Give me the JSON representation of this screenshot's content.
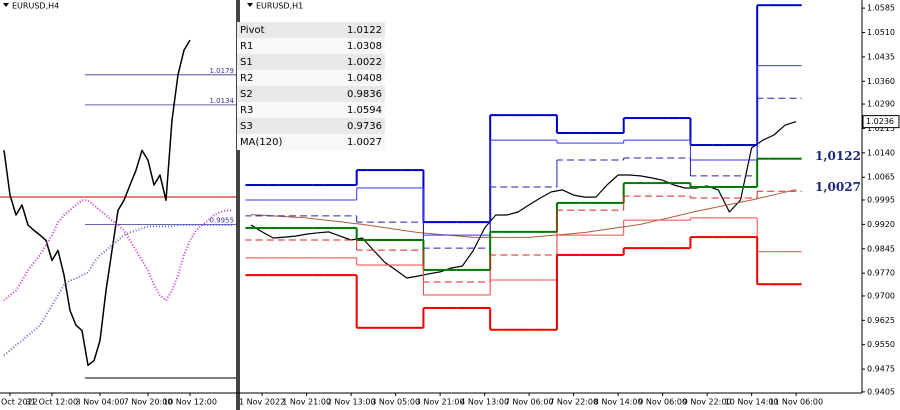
{
  "chart_data": [
    {
      "type": "line",
      "title": "EURUSD,H4",
      "categories": [
        null,
        "Oct 2022",
        null,
        null,
        null,
        null,
        null,
        null,
        "31 Oct 12:00",
        null,
        null,
        null,
        null,
        null,
        null,
        null,
        "3 Nov 04:00",
        null,
        null,
        null,
        null,
        null,
        null,
        null,
        "7 Nov 20:00",
        null,
        null,
        null,
        null,
        null,
        null,
        "10 Nov 12:00",
        null,
        null,
        null,
        null,
        null,
        null,
        null
      ],
      "ylim": [
        0.9692,
        1.0291
      ],
      "series": [
        {
          "color": "#000000",
          "width": 1.5,
          "values": [
            1.0066,
            0.9999,
            0.9969,
            0.9984,
            0.9954,
            0.9946,
            0.9939,
            0.9931,
            0.9901,
            0.9916,
            0.9879,
            0.9826,
            0.9804,
            0.9796,
            0.9744,
            0.9751,
            0.9781,
            0.9856,
            0.9916,
            0.9976,
            0.9991,
            1.0014,
            1.0036,
            1.0066,
            1.0051,
            1.0014,
            1.0029,
            0.9991,
            1.0111,
            1.0179,
            1.0216,
            1.0231,
            null,
            null,
            null,
            null,
            null,
            null,
            null
          ]
        },
        {
          "color": "#cc33cc",
          "width": 2,
          "dash": "1 2",
          "values": [
            0.9841,
            0.9849,
            0.9856,
            0.9871,
            0.9886,
            0.9898,
            0.9909,
            0.9924,
            0.9939,
            0.9958,
            0.9969,
            0.9976,
            0.9984,
            0.9991,
            0.9991,
            0.9984,
            0.9976,
            0.9969,
            0.9961,
            0.9954,
            0.9946,
            0.9931,
            0.9916,
            0.9901,
            0.9886,
            0.9864,
            0.9849,
            0.9841,
            0.9856,
            0.9879,
            0.9909,
            0.9931,
            0.9946,
            0.9954,
            0.9961,
            0.9969,
            0.9973,
            0.9976,
            0.9976
          ]
        },
        {
          "color": "#6666dd",
          "width": 2,
          "dash": "1 2",
          "values": [
            0.9759,
            0.9766,
            0.9774,
            0.9781,
            0.9789,
            0.9796,
            0.9804,
            0.9819,
            0.9834,
            0.9849,
            0.9864,
            0.9871,
            0.9874,
            0.9879,
            0.9883,
            0.9898,
            0.9909,
            0.9916,
            0.9924,
            0.9931,
            0.9939,
            0.9943,
            0.9946,
            0.9949,
            0.9952,
            0.9952,
            0.9952,
            0.9952,
            0.9952,
            0.9954,
            0.9954,
            0.9954,
            0.9954,
            0.9954,
            0.9954,
            0.9954,
            0.9954,
            0.9954,
            0.9954
          ]
        }
      ],
      "levels": [
        1.0179,
        1.0134,
        0.9955
      ],
      "lines": [
        {
          "value": 0.9996,
          "color": "#cc0000"
        },
        {
          "value": 0.9725,
          "color": "#000000"
        }
      ]
    },
    {
      "type": "line",
      "title": "EURUSD,H1",
      "categories": [
        null,
        "1 Nov 2022",
        null,
        null,
        null,
        "1 Nov 21:00",
        null,
        null,
        null,
        "2 Nov 13:00",
        null,
        null,
        null,
        "3 Nov 05:00",
        null,
        null,
        null,
        "3 Nov 21:00",
        null,
        null,
        null,
        "4 Nov 13:00",
        null,
        null,
        null,
        "7 Nov 06:00",
        null,
        null,
        null,
        "7 Nov 22:00",
        null,
        null,
        null,
        "8 Nov 14:00",
        null,
        null,
        null,
        "9 Nov 06:00",
        null,
        null,
        null,
        "9 Nov 22:00",
        null,
        null,
        null,
        "10 Nov 14:00",
        null,
        null,
        null,
        "11 Nov 06:00"
      ],
      "ylim": [
        0.938,
        1.061
      ],
      "yticks": [
        1.0585,
        {
          "value": 1.051,
          "label": "1.0510"
        },
        1.0435,
        {
          "value": 1.036,
          "label": "1.0360"
        },
        {
          "value": 1.029,
          "label": "1.0290"
        },
        1.0215,
        {
          "value": 1.014,
          "label": "1.0140"
        },
        1.0065,
        0.9995,
        {
          "value": 0.992,
          "label": "0.9920"
        },
        0.9845,
        {
          "value": 0.977,
          "label": "0.9770"
        },
        {
          "value": 0.97,
          "label": "0.9700"
        },
        0.9625,
        {
          "value": 0.955,
          "label": "0.9550"
        },
        0.9475,
        0.9405
      ],
      "last_price": 1.0236,
      "annotations": [
        "1,0122",
        "1,0027"
      ],
      "series": [
        {
          "color": "#000000",
          "width": 1.2,
          "values": [
            0.9918,
            0.9897,
            0.9878,
            0.9881,
            0.9884,
            0.989,
            0.9894,
            0.9897,
            0.9884,
            0.9872,
            0.9878,
            0.9841,
            0.9804,
            0.978,
            0.9755,
            0.9761,
            0.9768,
            0.9774,
            0.9786,
            0.9792,
            0.9841,
            0.9909,
            0.9949,
            0.9949,
            0.9958,
            0.998,
            1.0001,
            1.002,
            1.0026,
            1.001,
            1.0004,
            1.0004,
            1.0041,
            1.0072,
            1.0072,
            1.0069,
            1.0063,
            1.0056,
            1.0041,
            1.0032,
            1.0032,
            1.0038,
            1.0026,
            0.9958,
            0.9995,
            1.0155,
            1.0179,
            1.0195,
            1.0225,
            1.0236
          ]
        },
        {
          "color": "#b05a3a",
          "width": 1,
          "values": [
            0.995,
            0.9948,
            0.9946,
            0.9944,
            0.9942,
            0.994,
            0.9936,
            0.9932,
            0.9928,
            0.9924,
            0.992,
            0.9915,
            0.991,
            0.9905,
            0.99,
            0.9895,
            0.9892,
            0.9889,
            0.9886,
            0.9883,
            0.988,
            0.988,
            0.988,
            0.988,
            0.988,
            0.988,
            0.9883,
            0.9886,
            0.9889,
            0.9892,
            0.9895,
            0.99,
            0.9905,
            0.991,
            0.9915,
            0.992,
            0.9928,
            0.9936,
            0.9944,
            0.9952,
            0.996,
            0.9967,
            0.9974,
            0.9981,
            0.9988,
            0.9995,
            1.0003,
            1.0011,
            1.0019,
            1.0027
          ]
        },
        {
          "color": "#0000cc",
          "width": 2,
          "step": true,
          "values": [
            1.0041,
            1.0041,
            1.0041,
            1.0041,
            1.0041,
            1.0041,
            1.0041,
            1.0041,
            1.0041,
            1.0041,
            1.0087,
            1.0087,
            1.0087,
            1.0087,
            1.0087,
            1.0087,
            0.9927,
            0.9927,
            0.9927,
            0.9927,
            0.9927,
            0.9927,
            1.0256,
            1.0256,
            1.0256,
            1.0256,
            1.0256,
            1.0256,
            1.0201,
            1.0201,
            1.0201,
            1.0201,
            1.0201,
            1.0201,
            1.0247,
            1.0247,
            1.0247,
            1.0247,
            1.0247,
            1.0247,
            1.0164,
            1.0164,
            1.0164,
            1.0164,
            1.0164,
            1.0164,
            1.0594,
            1.0594,
            1.0594,
            1.0594
          ]
        },
        {
          "color": "#3333ff",
          "width": 1,
          "step": true,
          "values": [
            0.9995,
            0.9995,
            0.9995,
            0.9995,
            0.9995,
            0.9995,
            0.9995,
            0.9995,
            0.9995,
            0.9995,
            1.0032,
            1.0032,
            1.0032,
            1.0032,
            1.0032,
            1.0032,
            0.9887,
            0.9887,
            0.9887,
            0.9887,
            0.9887,
            0.9887,
            1.0179,
            1.0179,
            1.0179,
            1.0179,
            1.0179,
            1.0179,
            1.017,
            1.017,
            1.017,
            1.017,
            1.017,
            1.017,
            1.0179,
            1.0179,
            1.0179,
            1.0179,
            1.0179,
            1.0179,
            1.0118,
            1.0118,
            1.0118,
            1.0118,
            1.0118,
            1.0118,
            1.0408,
            1.0408,
            1.0408,
            1.0408
          ]
        },
        {
          "color": "#2222aa",
          "width": 1,
          "dash": "6 4",
          "step": true,
          "values": [
            0.9946,
            0.9946,
            0.9946,
            0.9946,
            0.9946,
            0.9946,
            0.9946,
            0.9946,
            0.9946,
            0.9946,
            0.9927,
            0.9927,
            0.9927,
            0.9927,
            0.9927,
            0.9927,
            0.9847,
            0.9847,
            0.9847,
            0.9847,
            0.9847,
            0.9847,
            1.0035,
            1.0035,
            1.0035,
            1.0035,
            1.0035,
            1.0035,
            1.0118,
            1.0118,
            1.0118,
            1.0118,
            1.0118,
            1.0118,
            1.0124,
            1.0124,
            1.0124,
            1.0124,
            1.0124,
            1.0124,
            1.0069,
            1.0069,
            1.0069,
            1.0069,
            1.0069,
            1.0069,
            1.0308,
            1.0308,
            1.0308,
            1.0308
          ]
        },
        {
          "color": "#007700",
          "width": 2,
          "step": true,
          "values": [
            0.9909,
            0.9909,
            0.9909,
            0.9909,
            0.9909,
            0.9909,
            0.9909,
            0.9909,
            0.9909,
            0.9909,
            0.9872,
            0.9872,
            0.9872,
            0.9872,
            0.9872,
            0.9872,
            0.978,
            0.978,
            0.978,
            0.978,
            0.978,
            0.978,
            0.9897,
            0.9897,
            0.9897,
            0.9897,
            0.9897,
            0.9897,
            0.9986,
            0.9986,
            0.9986,
            0.9986,
            0.9986,
            0.9986,
            1.0047,
            1.0047,
            1.0047,
            1.0047,
            1.0047,
            1.0047,
            1.0035,
            1.0035,
            1.0035,
            1.0035,
            1.0035,
            1.0035,
            1.0122,
            1.0122,
            1.0122,
            1.0122
          ]
        },
        {
          "color": "#dd2222",
          "width": 1,
          "dash": "6 4",
          "step": true,
          "values": [
            0.9872,
            0.9872,
            0.9872,
            0.9872,
            0.9872,
            0.9872,
            0.9872,
            0.9872,
            0.9872,
            0.9872,
            0.9841,
            0.9841,
            0.9841,
            0.9841,
            0.9841,
            0.9841,
            0.9743,
            0.9743,
            0.9743,
            0.9743,
            0.9743,
            0.9743,
            0.9826,
            0.9826,
            0.9826,
            0.9826,
            0.9826,
            0.9826,
            0.9964,
            0.9964,
            0.9964,
            0.9964,
            0.9964,
            0.9964,
            1.0007,
            1.0007,
            1.0007,
            1.0007,
            1.0007,
            1.0007,
            1.0001,
            1.0001,
            1.0001,
            1.0001,
            1.0001,
            1.0001,
            1.0022,
            1.0022,
            1.0022,
            1.0022
          ]
        },
        {
          "color": "#ff4444",
          "width": 1,
          "step": true,
          "values": [
            0.9817,
            0.9817,
            0.9817,
            0.9817,
            0.9817,
            0.9817,
            0.9817,
            0.9817,
            0.9817,
            0.9817,
            0.9795,
            0.9795,
            0.9795,
            0.9795,
            0.9795,
            0.9795,
            0.9703,
            0.9703,
            0.9703,
            0.9703,
            0.9703,
            0.9703,
            0.9749,
            0.9749,
            0.9749,
            0.9749,
            0.9749,
            0.9749,
            0.9887,
            0.9887,
            0.9887,
            0.9887,
            0.9887,
            0.9887,
            0.9933,
            0.9933,
            0.9933,
            0.9933,
            0.9933,
            0.9933,
            0.994,
            0.994,
            0.994,
            0.994,
            0.994,
            0.994,
            0.9836,
            0.9836,
            0.9836,
            0.9836
          ]
        },
        {
          "color": "#ee0000",
          "width": 2,
          "step": true,
          "values": [
            0.9764,
            0.9764,
            0.9764,
            0.9764,
            0.9764,
            0.9764,
            0.9764,
            0.9764,
            0.9764,
            0.9764,
            0.9602,
            0.9602,
            0.9602,
            0.9602,
            0.9602,
            0.9602,
            0.9663,
            0.9663,
            0.9663,
            0.9663,
            0.9663,
            0.9663,
            0.9596,
            0.9596,
            0.9596,
            0.9596,
            0.9596,
            0.9596,
            0.9826,
            0.9826,
            0.9826,
            0.9826,
            0.9826,
            0.9826,
            0.9847,
            0.9847,
            0.9847,
            0.9847,
            0.9847,
            0.9847,
            0.9881,
            0.9881,
            0.9881,
            0.9881,
            0.9881,
            0.9881,
            0.9736,
            0.9736,
            0.9736,
            0.9736
          ]
        }
      ],
      "table": {
        "rows": [
          [
            "Pivot",
            1.0122
          ],
          [
            "R1",
            1.0308
          ],
          [
            "S1",
            1.0022
          ],
          [
            "R2",
            1.0408
          ],
          [
            "S2",
            0.9836
          ],
          [
            "R3",
            1.0594
          ],
          [
            "S3",
            0.9736
          ],
          [
            "MA(120)",
            1.0027
          ]
        ]
      }
    }
  ]
}
